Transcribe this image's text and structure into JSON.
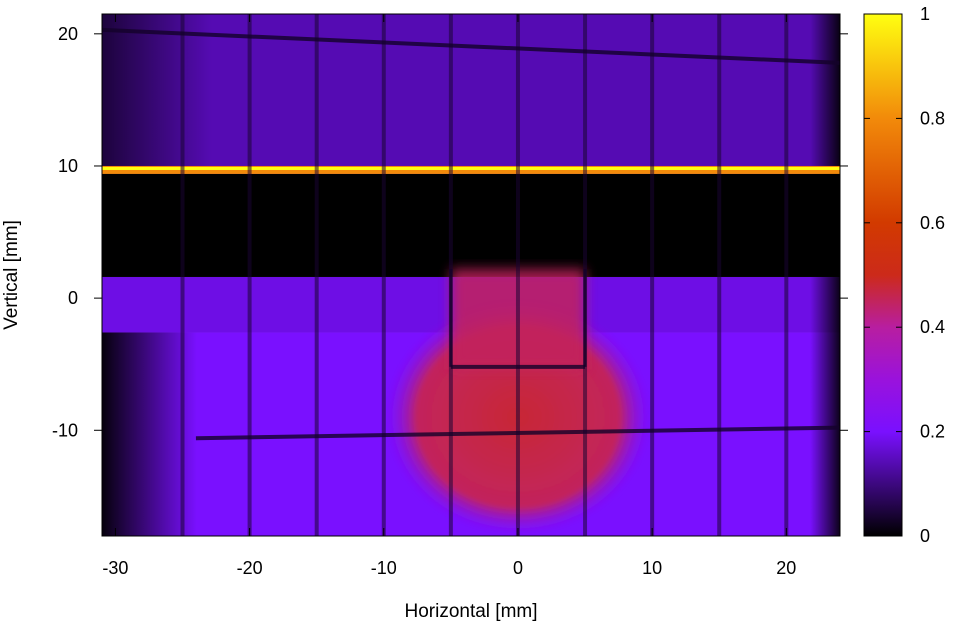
{
  "chart_data": {
    "type": "heatmap",
    "title": "",
    "xlabel": "Horizontal [mm]",
    "ylabel": "Vertical [mm]",
    "xlim": [
      -31,
      24
    ],
    "ylim": [
      -18,
      21.5
    ],
    "xticks": [
      -30,
      -20,
      -10,
      0,
      10,
      20
    ],
    "yticks": [
      -10,
      0,
      10,
      20
    ],
    "colorbar": {
      "range": [
        0,
        1
      ],
      "ticks": [
        0,
        0.2,
        0.4,
        0.6,
        0.8,
        1
      ],
      "tick_labels": [
        "0",
        "0.2",
        "0.4",
        "0.6",
        "0.8",
        "1"
      ],
      "colormap": [
        {
          "value": 0.0,
          "color": "#000000"
        },
        {
          "value": 0.2,
          "color": "#7a10ff"
        },
        {
          "value": 0.3,
          "color": "#9a12dc"
        },
        {
          "value": 0.4,
          "color": "#b81ea0"
        },
        {
          "value": 0.5,
          "color": "#cc2a1a"
        },
        {
          "value": 0.6,
          "color": "#d23a00"
        },
        {
          "value": 0.8,
          "color": "#f28a0a"
        },
        {
          "value": 1.0,
          "color": "#ffff10"
        }
      ]
    },
    "regions": [
      {
        "name": "upper band",
        "y_range": [
          9.4,
          21.5
        ],
        "intensity": 0.14
      },
      {
        "name": "bright edge",
        "y_range": [
          9.4,
          10.0
        ],
        "intensity": 1.0
      },
      {
        "name": "dark gap",
        "y_range": [
          1.6,
          9.4
        ],
        "intensity": 0.0
      },
      {
        "name": "middle band",
        "y_range": [
          -2.6,
          1.6
        ],
        "intensity": 0.18
      },
      {
        "name": "lower region",
        "y_range": [
          -18,
          -2.6
        ],
        "intensity": 0.2
      },
      {
        "name": "bright spot",
        "center": [
          0,
          -9
        ],
        "radius_x": 10,
        "radius_y": 9,
        "intensity": 0.48
      },
      {
        "name": "upper rectangle",
        "x_range": [
          -5,
          5
        ],
        "y_range": [
          -5.4,
          2.2
        ],
        "intensity": 0.45
      }
    ],
    "grid_lines_mm": {
      "x": [
        -25,
        -20,
        -15,
        -10,
        -5,
        0,
        5,
        10,
        15,
        20
      ],
      "y_lines": [
        {
          "from": [
            -31,
            20.3
          ],
          "to": [
            24,
            17.8
          ]
        },
        {
          "from": [
            -24,
            -10.6
          ],
          "to": [
            24,
            -9.8
          ]
        },
        {
          "from": [
            -5,
            -5.2
          ],
          "to": [
            5,
            -5.2
          ]
        }
      ]
    }
  }
}
